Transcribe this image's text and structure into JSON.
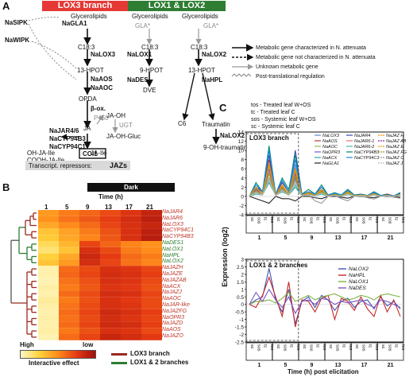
{
  "panel_a": {
    "letter": "A",
    "lox3_branch": "LOX3 branch",
    "lox12_branch": "LOX1 & LOX2 branches",
    "left": {
      "glycerolipids": "Glycerolipids",
      "naglai": "NaGLA1",
      "nasipk": "NaSIPK",
      "nawipk": "NaWIPK",
      "c18_3": "C18:3",
      "nalox3": "NaLOX3",
      "hpot13": "13-HPOT",
      "naaos": "NaAOS",
      "naaoc": "NaAOC",
      "opda": "OPDA",
      "beta_ox": "β-ox.",
      "p450": "P450",
      "ja": "JA",
      "ja_oh": "JA-OH",
      "ugt": "UGT",
      "najar": "NaJAR4/6",
      "nacyp94b3": "NaCYP94B3",
      "nacyp94c1": "NaCYP94C1",
      "oh_ja_ile": "OH-JA-Ile",
      "ja_ile": "JA-Ile",
      "cooh_ja_ile": "COOH-JA-Ile",
      "coi1": "COI1",
      "ja_oh_gluc": "JA-OH-Gluc",
      "transcript_label": "Transcript. repressors:",
      "jazs": "JAZs"
    },
    "middle": {
      "glycerolipids_1": "Glycerolipids",
      "glycerolipids_2": "Glycerolipids",
      "gla_1": "GLA*",
      "gla_2": "GLA*",
      "c18_3_1": "C18:3",
      "c18_3_2": "C18:3",
      "nalox1": "NaLOX1",
      "nalox2": "NaLOX2",
      "hpot9": "9-HPOT",
      "hpot13": "13-HPOT",
      "nades": "NaDES",
      "nahpl": "NaHPL",
      "dve": "DVE",
      "c6": "C6",
      "traumatin": "Traumatin",
      "nalox2_b": "NaLOX2",
      "oh_traumatin": "9-OH-traumatin"
    },
    "legend": [
      "Metabolic gene characterized in N. attenuata",
      "Metabolic gene not characterized in N. attenuata",
      "Unknown metabolic gene",
      "Post-translational regulation"
    ]
  },
  "panel_b": {
    "letter": "B",
    "dark_label": "Dark",
    "time_label": "Time (h)",
    "times": [
      "1",
      "5",
      "9",
      "13",
      "17",
      "21"
    ],
    "genes": [
      {
        "name": "NaJAR4",
        "branch": "lox3"
      },
      {
        "name": "NaJAR6",
        "branch": "lox3"
      },
      {
        "name": "NaLOX3",
        "branch": "lox3"
      },
      {
        "name": "NaCYP94C1",
        "branch": "lox3"
      },
      {
        "name": "NaCYP94B3",
        "branch": "lox3"
      },
      {
        "name": "NaDES1",
        "branch": "lox12"
      },
      {
        "name": "NaLOX1",
        "branch": "lox12"
      },
      {
        "name": "NaHPL",
        "branch": "lox12"
      },
      {
        "name": "NaLOX2",
        "branch": "lox12"
      },
      {
        "name": "NaJAZH",
        "branch": "lox3"
      },
      {
        "name": "NaJAZE",
        "branch": "lox3"
      },
      {
        "name": "NaJAZAB",
        "branch": "lox3"
      },
      {
        "name": "NaACX",
        "branch": "lox3"
      },
      {
        "name": "NaJAZJ",
        "branch": "lox3"
      },
      {
        "name": "NaAOC",
        "branch": "lox3"
      },
      {
        "name": "NaJAR-like",
        "branch": "lox3"
      },
      {
        "name": "NaJAZFG",
        "branch": "lox3"
      },
      {
        "name": "NaOPR3",
        "branch": "lox3"
      },
      {
        "name": "NaJAZD",
        "branch": "lox3"
      },
      {
        "name": "NaAOS",
        "branch": "lox3"
      },
      {
        "name": "NaJAZO",
        "branch": "lox3"
      }
    ],
    "heat": [
      [
        0.45,
        0.55,
        0.62,
        0.7,
        0.78,
        0.88
      ],
      [
        0.48,
        0.58,
        0.66,
        0.74,
        0.82,
        0.9
      ],
      [
        0.4,
        0.5,
        0.6,
        0.72,
        0.8,
        0.86
      ],
      [
        0.3,
        0.42,
        0.55,
        0.68,
        0.8,
        0.9
      ],
      [
        0.28,
        0.4,
        0.52,
        0.66,
        0.8,
        0.92
      ],
      [
        0.2,
        0.35,
        0.72,
        0.62,
        0.52,
        0.48
      ],
      [
        0.15,
        0.3,
        0.8,
        0.7,
        0.55,
        0.5
      ],
      [
        0.25,
        0.4,
        0.85,
        0.75,
        0.6,
        0.55
      ],
      [
        0.3,
        0.45,
        0.82,
        0.72,
        0.58,
        0.52
      ],
      [
        0.05,
        0.6,
        0.7,
        0.8,
        0.78,
        0.72
      ],
      [
        0.05,
        0.62,
        0.72,
        0.82,
        0.8,
        0.74
      ],
      [
        0.04,
        0.58,
        0.68,
        0.8,
        0.78,
        0.7
      ],
      [
        0.06,
        0.55,
        0.66,
        0.78,
        0.76,
        0.68
      ],
      [
        0.05,
        0.6,
        0.7,
        0.82,
        0.8,
        0.72
      ],
      [
        0.08,
        0.55,
        0.68,
        0.8,
        0.76,
        0.7
      ],
      [
        0.06,
        0.58,
        0.7,
        0.8,
        0.78,
        0.7
      ],
      [
        0.05,
        0.6,
        0.72,
        0.84,
        0.8,
        0.74
      ],
      [
        0.06,
        0.58,
        0.7,
        0.82,
        0.78,
        0.72
      ],
      [
        0.05,
        0.6,
        0.72,
        0.84,
        0.82,
        0.74
      ],
      [
        0.06,
        0.56,
        0.68,
        0.8,
        0.78,
        0.7
      ],
      [
        0.04,
        0.6,
        0.72,
        0.86,
        0.82,
        0.76
      ]
    ],
    "scale_high": "High",
    "scale_low": "low",
    "scale_caption": "Interactive effect",
    "legend_lox3": "LOX3 branch",
    "legend_lox12": "LOX1 & 2 branches",
    "colors": {
      "lox3": "#9b2a1e",
      "lox12": "#2e7d32"
    }
  },
  "panel_c": {
    "letter": "C",
    "condition_legend": [
      "tos - Treated leaf W+OS",
      "tc - Treated leaf C",
      "sos - Systemic leaf W+OS",
      "sc - Systemic leaf C"
    ],
    "ylabel": "Expression (log2)",
    "xlabel": "Time (h) post elicitation",
    "time_groups": [
      "1",
      "5",
      "9",
      "13",
      "17",
      "21"
    ],
    "conditions": [
      "sc",
      "sos",
      "tc",
      "tos"
    ],
    "top": {
      "title": "LOX3 branch",
      "ylim": [
        -4,
        14
      ],
      "yticks": [
        "14",
        "12",
        "10",
        "8",
        "6",
        "4",
        "2",
        "0",
        "-2",
        "-4"
      ],
      "legend_cols": [
        [
          "NaLOX3",
          "NaAOS",
          "NaAOC",
          "NaOPR3",
          "NaACX",
          "NaGLA1"
        ],
        [
          "NaJAR4",
          "NaJAR6-1",
          "NaJAR6-2",
          "NaCYP94B3",
          "NaCYP94C1"
        ],
        [
          "NaJAZ H",
          "NaJAZ AB",
          "NaJAZ E",
          "NaJAZ FG",
          "NaJAZ O",
          "NaJAZ J"
        ]
      ]
    },
    "bottom": {
      "title": "LOX1 & 2 branches",
      "ylim": [
        -2.5,
        3
      ],
      "yticks": [
        "3",
        "2.5",
        "2",
        "1.5",
        "1",
        "0.5",
        "0",
        "-0.5",
        "-1",
        "-1.5",
        "-2",
        "-2.5"
      ],
      "legend": [
        "NaLOX2",
        "NaHPL",
        "NaLOX1",
        "NaDES"
      ]
    }
  },
  "chart_data": [
    {
      "type": "line",
      "title": "LOX3 branch",
      "xlabel": "Time (h) post elicitation",
      "ylabel": "Expression (log2)",
      "ylim": [
        -4,
        14
      ],
      "x": [
        "1 sc",
        "1 sos",
        "1 tc",
        "1 tos",
        "5 sc",
        "5 sos",
        "5 tc",
        "5 tos",
        "9 sc",
        "9 sos",
        "9 tc",
        "9 tos",
        "13 sc",
        "13 sos",
        "13 tc",
        "13 tos",
        "17 sc",
        "17 sos",
        "17 tc",
        "17 tos",
        "21 sc",
        "21 sos",
        "21 tc",
        "21 tos"
      ],
      "series": [
        {
          "name": "NaLOX3",
          "color": "#5b8fd1",
          "values": [
            0,
            1,
            0.5,
            6,
            0.5,
            2,
            0.5,
            7,
            0.5,
            0.5,
            0.3,
            1,
            0.3,
            0.5,
            0.2,
            1,
            0.2,
            0.5,
            0.2,
            0.8,
            0.2,
            0.5,
            0.1,
            0.8
          ]
        },
        {
          "name": "NaAOS",
          "color": "#c0392b",
          "values": [
            0,
            2,
            1,
            8,
            0.5,
            3,
            1,
            6,
            0.5,
            1,
            0.5,
            1.5,
            0.3,
            0.5,
            0.3,
            1.2,
            0.3,
            0.4,
            0.2,
            0.8,
            0.1,
            0.5,
            0.1,
            0.6
          ]
        },
        {
          "name": "NaAOC",
          "color": "#8bc34a",
          "values": [
            0,
            1.5,
            1,
            7,
            0.5,
            2,
            0.5,
            5,
            0.3,
            0.8,
            0.3,
            1.5,
            0.2,
            0.5,
            0.2,
            1,
            0.2,
            0.4,
            0.2,
            0.6,
            0.1,
            0.3,
            0.1,
            0.5
          ]
        },
        {
          "name": "NaOPR3",
          "color": "#7e57c2",
          "values": [
            0,
            1,
            0.5,
            5,
            0.3,
            1.5,
            0.5,
            4,
            0.2,
            0.5,
            0.2,
            1,
            0.1,
            0.3,
            0.1,
            0.8,
            0.1,
            0.3,
            0.1,
            0.5,
            0,
            0.2,
            0,
            0.4
          ]
        },
        {
          "name": "NaACX",
          "color": "#26a69a",
          "values": [
            0,
            0.5,
            0.3,
            3,
            0.2,
            1,
            0.3,
            2,
            0.1,
            0.3,
            0.1,
            0.5,
            0,
            0.2,
            0,
            0.4,
            0,
            0.1,
            0,
            0.3,
            0,
            0.1,
            0,
            0.2
          ]
        },
        {
          "name": "NaGLA1",
          "color": "#222222",
          "values": [
            0,
            -0.5,
            -1,
            -1.5,
            0,
            -0.5,
            -0.5,
            -1,
            0,
            0,
            -0.3,
            -0.5,
            0,
            0,
            -0.2,
            -0.4,
            0,
            0,
            -0.2,
            -0.3,
            0,
            0,
            -0.1,
            -0.2
          ]
        },
        {
          "name": "NaJAR4",
          "color": "#3949ab",
          "values": [
            0,
            2,
            1,
            9,
            0.5,
            3,
            1,
            10,
            0.5,
            1,
            0.5,
            2,
            0.3,
            0.5,
            0.3,
            1.5,
            0.3,
            0.5,
            0.2,
            1,
            0.2,
            0.4,
            0.1,
            0.8
          ]
        },
        {
          "name": "NaJAR6-1",
          "color": "#e57373",
          "values": [
            0,
            1,
            0.5,
            4,
            0.3,
            1.5,
            0.5,
            3,
            0.2,
            0.5,
            0.2,
            1,
            0.1,
            0.3,
            0.1,
            0.6,
            0.1,
            0.2,
            0.1,
            0.4,
            0,
            0.2,
            0,
            0.3
          ]
        },
        {
          "name": "NaJAR6-2",
          "color": "#4db6ac",
          "values": [
            0,
            0.8,
            0.4,
            3.5,
            0.2,
            1.2,
            0.4,
            2.5,
            0.1,
            0.4,
            0.1,
            0.8,
            0.1,
            0.2,
            0.1,
            0.5,
            0,
            0.2,
            0,
            0.3,
            0,
            0.1,
            0,
            0.2
          ]
        },
        {
          "name": "NaCYP94B3",
          "color": "#00897b",
          "values": [
            0,
            3,
            1,
            11,
            0.5,
            4,
            1.5,
            9,
            0.5,
            1.5,
            0.5,
            2.5,
            0.3,
            0.8,
            0.3,
            1.5,
            0.3,
            0.5,
            0.2,
            1,
            0.2,
            0.4,
            0.1,
            0.8
          ]
        },
        {
          "name": "NaCYP94C1",
          "color": "#1e88e5",
          "values": [
            0,
            2.5,
            1,
            10,
            0.5,
            3.5,
            1,
            8,
            0.5,
            1,
            0.5,
            2,
            0.3,
            0.6,
            0.3,
            1.2,
            0.2,
            0.4,
            0.2,
            0.8,
            0.1,
            0.3,
            0.1,
            0.6
          ]
        },
        {
          "name": "NaJAZ H",
          "color": "#fb8c00",
          "values": [
            0,
            2,
            0.5,
            7,
            0.3,
            2.5,
            0.5,
            6,
            0.2,
            0.8,
            0.2,
            1.5,
            0.1,
            0.4,
            0.1,
            1,
            0.1,
            0.3,
            0.1,
            0.6,
            0,
            0.2,
            0,
            0.4
          ]
        },
        {
          "name": "NaJAZ AB",
          "color": "#8e24aa",
          "values": [
            0,
            1.5,
            0.5,
            6,
            0.3,
            2,
            0.5,
            5,
            0.2,
            0.6,
            0.2,
            1.2,
            0.1,
            0.3,
            0.1,
            0.8,
            0.1,
            0.2,
            0.1,
            0.5,
            0,
            0.2,
            0,
            0.3
          ]
        },
        {
          "name": "NaJAZ E",
          "color": "#d4a017",
          "values": [
            0,
            1.8,
            0.5,
            6.5,
            0.3,
            2.2,
            0.5,
            5.5,
            0.2,
            0.7,
            0.2,
            1.3,
            0.1,
            0.4,
            0.1,
            0.9,
            0.1,
            0.3,
            0.1,
            0.5,
            0,
            0.2,
            0,
            0.4
          ]
        },
        {
          "name": "NaJAZ FG",
          "color": "#9e9d24",
          "values": [
            0,
            1.2,
            0.4,
            5,
            0.2,
            1.8,
            0.4,
            4.5,
            0.1,
            0.5,
            0.1,
            1,
            0.1,
            0.3,
            0.1,
            0.7,
            0,
            0.2,
            0,
            0.4,
            0,
            0.1,
            0,
            0.3
          ]
        },
        {
          "name": "NaJAZ O",
          "color": "#999999",
          "values": [
            0,
            1,
            0.3,
            4,
            0.2,
            1.5,
            0.3,
            3.5,
            0.1,
            0.4,
            -1,
            -1.5,
            0,
            0.2,
            -0.5,
            -1,
            0,
            0.1,
            -0.3,
            -0.6,
            0,
            0.1,
            -0.2,
            -0.4
          ]
        },
        {
          "name": "NaJAZ J",
          "color": "#bdbdbd",
          "values": [
            0,
            0.8,
            0.3,
            3.5,
            0.1,
            1.2,
            0.3,
            3,
            0.1,
            0.3,
            0.1,
            0.7,
            0,
            0.2,
            0,
            0.5,
            0,
            0.1,
            0,
            0.3,
            0,
            0.1,
            0,
            0.2
          ]
        }
      ]
    },
    {
      "type": "line",
      "title": "LOX1 & 2 branches",
      "xlabel": "Time (h) post elicitation",
      "ylabel": "Expression (log2)",
      "ylim": [
        -2.5,
        3
      ],
      "x": [
        "1 sc",
        "1 sos",
        "1 tc",
        "1 tos",
        "5 sc",
        "5 sos",
        "5 tc",
        "5 tos",
        "9 sc",
        "9 sos",
        "9 tc",
        "9 tos",
        "13 sc",
        "13 sos",
        "13 tc",
        "13 tos",
        "17 sc",
        "17 sos",
        "17 tc",
        "17 tos",
        "21 sc",
        "21 sos",
        "21 tc",
        "21 tos"
      ],
      "series": [
        {
          "name": "NaLOX2",
          "color": "#3f51b5",
          "values": [
            0,
            0.3,
            0.5,
            2.4,
            0.3,
            -0.5,
            1,
            -1.3,
            0.2,
            0.5,
            -0.2,
            0.6,
            0.3,
            -0.4,
            0.2,
            0.4,
            -0.2,
            0.2,
            0.3,
            -0.3,
            0.5,
            -0.1,
            0.2,
            -0.3
          ]
        },
        {
          "name": "NaHPL",
          "color": "#c62828",
          "values": [
            0,
            -0.2,
            0.6,
            1.8,
            0.5,
            -0.8,
            1.5,
            -1.5,
            0.3,
            0.2,
            -0.5,
            0.4,
            0.6,
            -1,
            0.4,
            0.2,
            -0.4,
            0.5,
            -0.3,
            -0.8,
            0.6,
            -0.5,
            0.3,
            -0.8
          ]
        },
        {
          "name": "NaLOX1",
          "color": "#7cb342",
          "values": [
            0,
            0.2,
            0.2,
            0.3,
            0.1,
            0.4,
            0.8,
            0.2,
            0.4,
            0.6,
            0.3,
            0.5,
            0.6,
            0.7,
            0.5,
            0.3,
            0.4,
            0.6,
            0.5,
            0.3,
            0.6,
            0.7,
            0.6,
            0.5
          ]
        },
        {
          "name": "NaDES",
          "color": "#7e57c2",
          "values": [
            0,
            0.8,
            0.2,
            1,
            0.3,
            -0.2,
            0.5,
            -0.6,
            0.2,
            0.3,
            0,
            0.4,
            0.3,
            0,
            0.2,
            0.1,
            0.2,
            0.3,
            0,
            -0.2,
            0.3,
            0.2,
            0,
            -0.2
          ]
        }
      ]
    }
  ]
}
